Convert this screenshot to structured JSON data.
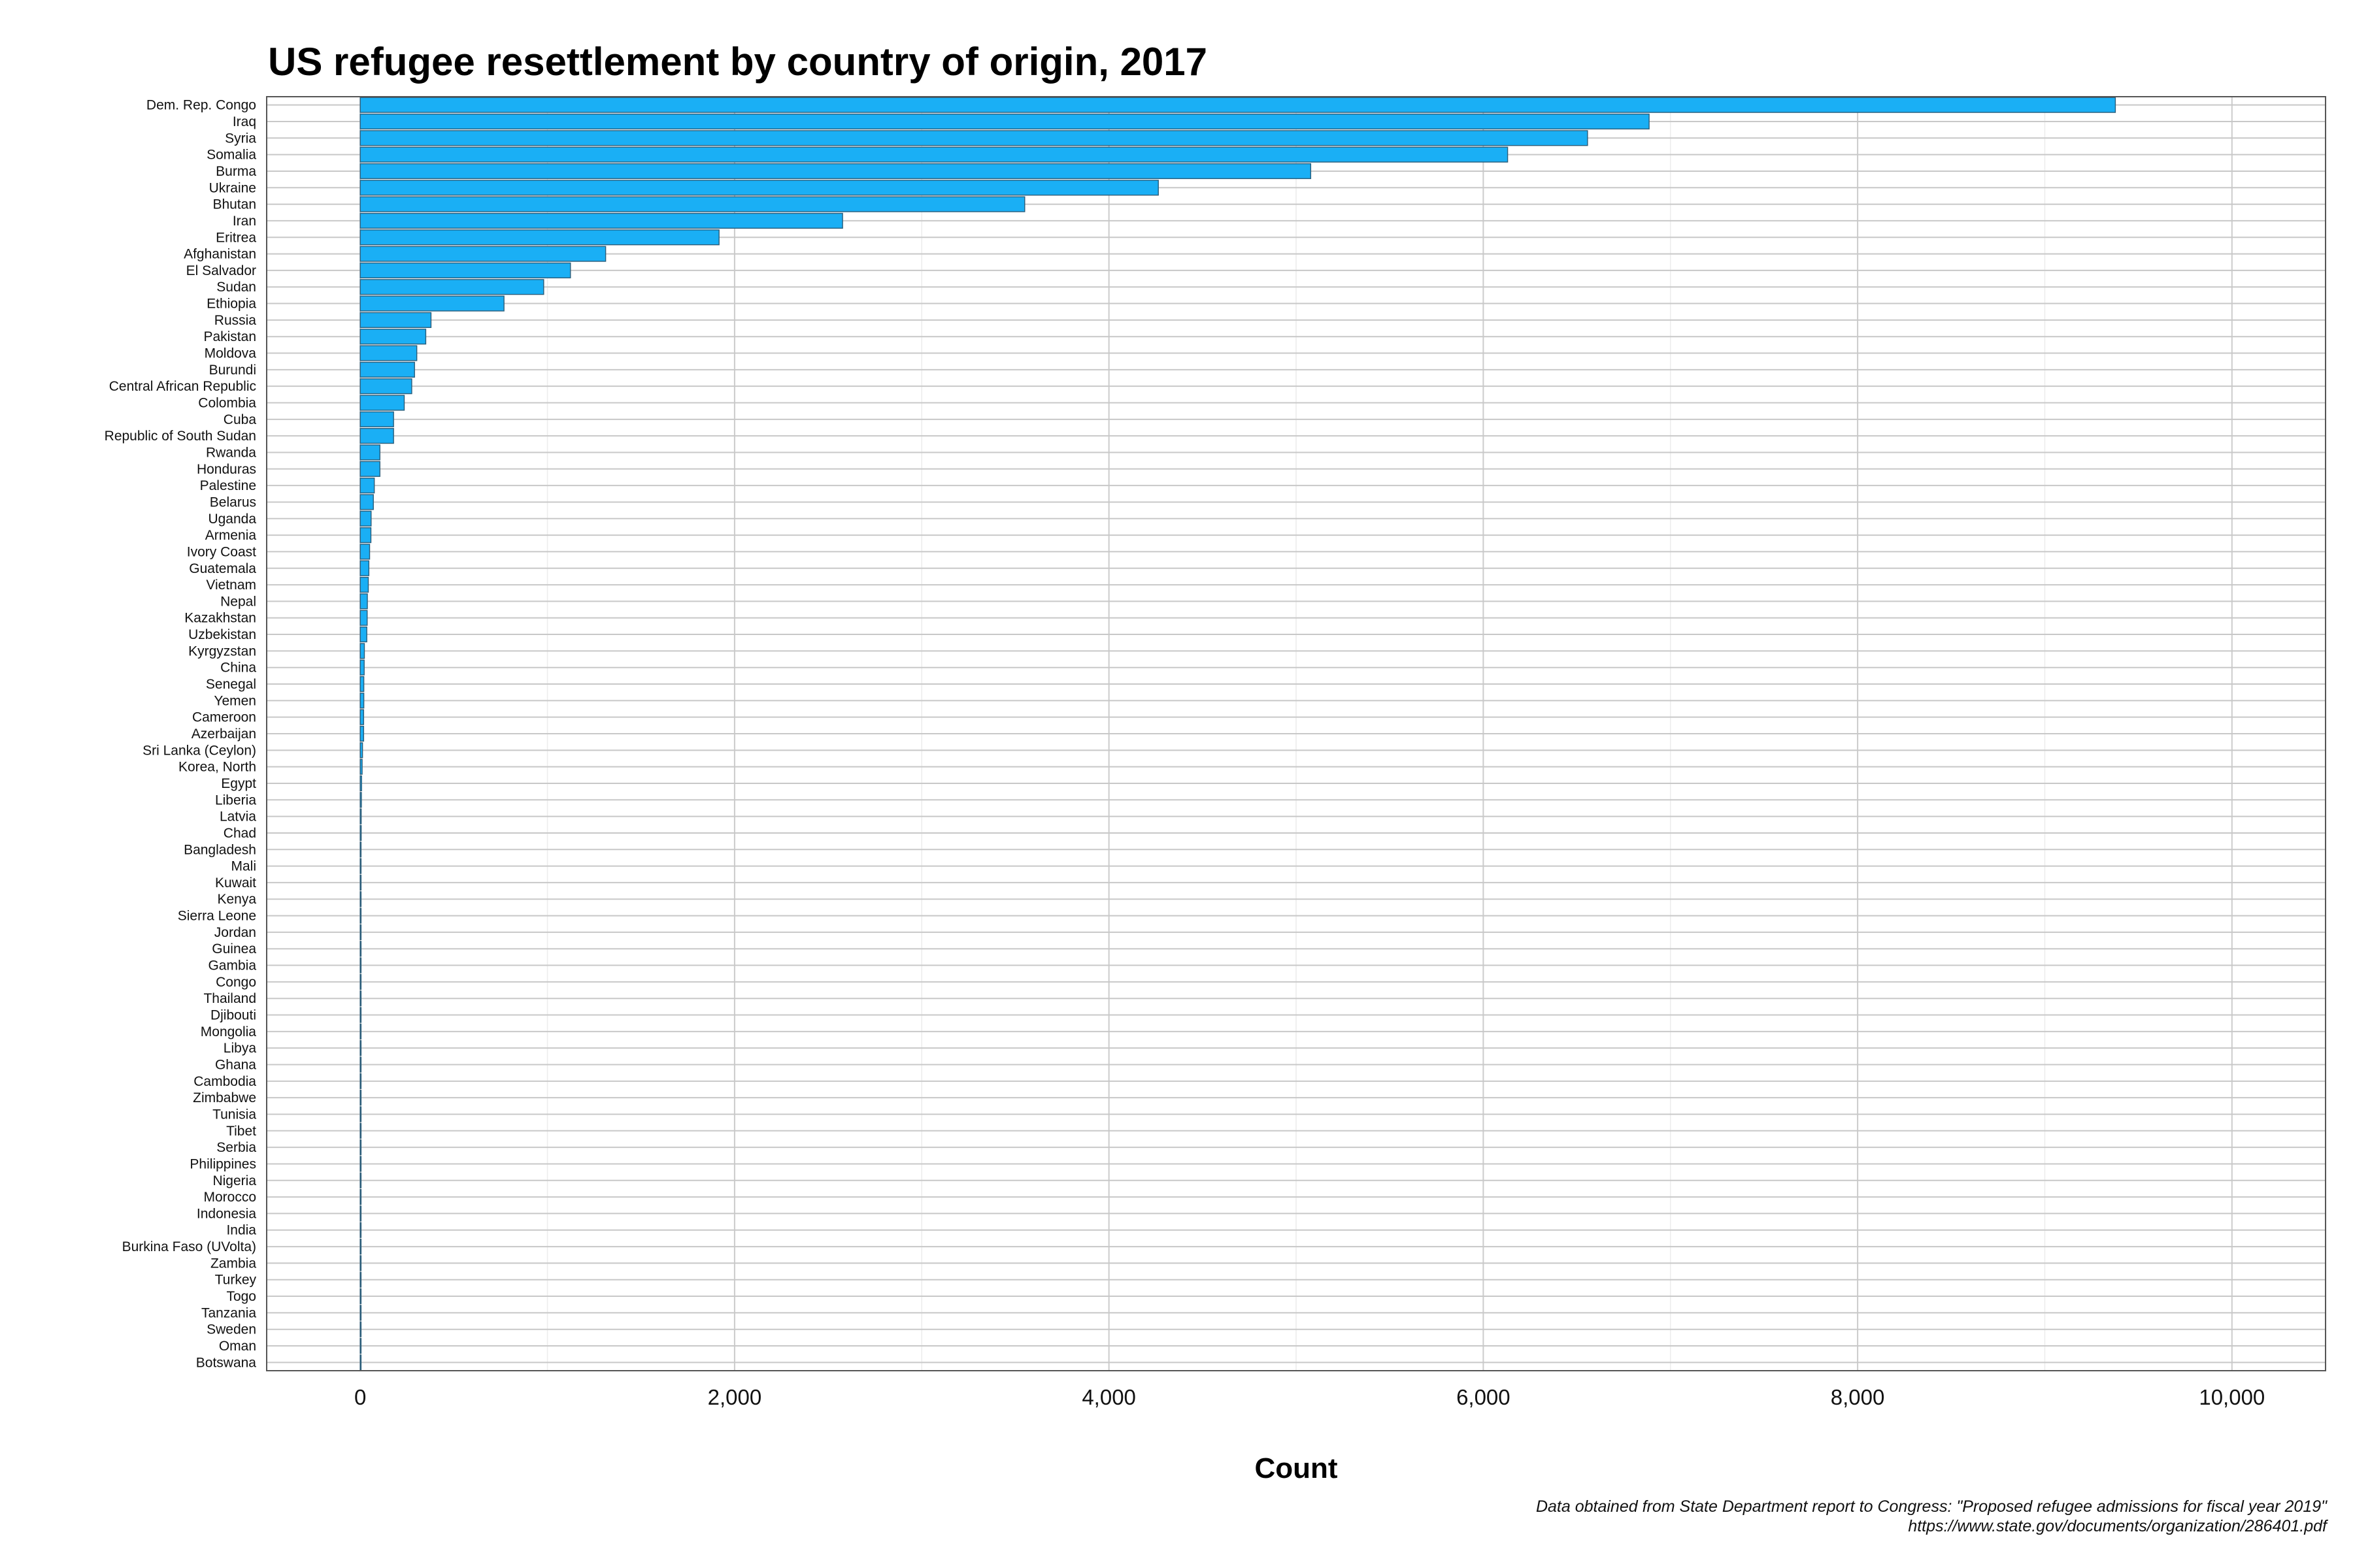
{
  "chart_data": {
    "type": "bar",
    "orientation": "horizontal",
    "title": "US refugee resettlement by country of origin, 2017",
    "xlabel": "Count",
    "ylabel": "",
    "xlim": [
      -500,
      10500
    ],
    "xticks": [
      0,
      2000,
      4000,
      6000,
      8000,
      10000
    ],
    "xtick_labels": [
      "0",
      "2,000",
      "4,000",
      "6,000",
      "8,000",
      "10,000"
    ],
    "grid": true,
    "legend": "none",
    "categories": [
      "Dem. Rep. Congo",
      "Iraq",
      "Syria",
      "Somalia",
      "Burma",
      "Ukraine",
      "Bhutan",
      "Iran",
      "Eritrea",
      "Afghanistan",
      "El Salvador",
      "Sudan",
      "Ethiopia",
      "Russia",
      "Pakistan",
      "Moldova",
      "Burundi",
      "Central African Republic",
      "Colombia",
      "Cuba",
      "Republic of South Sudan",
      "Rwanda",
      "Honduras",
      "Palestine",
      "Belarus",
      "Uganda",
      "Armenia",
      "Ivory Coast",
      "Guatemala",
      "Vietnam",
      "Nepal",
      "Kazakhstan",
      "Uzbekistan",
      "Kyrgyzstan",
      "China",
      "Senegal",
      "Yemen",
      "Cameroon",
      "Azerbaijan",
      "Sri Lanka (Ceylon)",
      "Korea, North",
      "Egypt",
      "Liberia",
      "Latvia",
      "Chad",
      "Bangladesh",
      "Mali",
      "Kuwait",
      "Kenya",
      "Sierra Leone",
      "Jordan",
      "Guinea",
      "Gambia",
      "Congo",
      "Thailand",
      "Djibouti",
      "Mongolia",
      "Libya",
      "Ghana",
      "Cambodia",
      "Zimbabwe",
      "Tunisia",
      "Tibet",
      "Serbia",
      "Philippines",
      "Nigeria",
      "Morocco",
      "Indonesia",
      "India",
      "Burkina Faso (UVolta)",
      "Zambia",
      "Turkey",
      "Togo",
      "Tanzania",
      "Sweden",
      "Oman",
      "Botswana"
    ],
    "values": [
      9377,
      6886,
      6557,
      6130,
      5078,
      4264,
      3550,
      2577,
      1917,
      1311,
      1123,
      980,
      768,
      378,
      350,
      302,
      290,
      275,
      235,
      178,
      178,
      105,
      105,
      75,
      70,
      58,
      57,
      50,
      46,
      43,
      38,
      37,
      35,
      22,
      21,
      19,
      19,
      18,
      18,
      12,
      10,
      7,
      6,
      5,
      5,
      4,
      4,
      4,
      4,
      3,
      3,
      3,
      3,
      3,
      2,
      2,
      2,
      2,
      2,
      2,
      2,
      2,
      2,
      2,
      1,
      1,
      1,
      1,
      1,
      1,
      1,
      1,
      1,
      1,
      1,
      1,
      1
    ],
    "bar_color": "#1aaff5",
    "bar_stroke": "#2a5d7a",
    "caption": [
      "Data obtained from State Department report to Congress: \"Proposed refugee admissions for fiscal year 2019\"",
      "https://www.state.gov/documents/organization/286401.pdf"
    ]
  }
}
